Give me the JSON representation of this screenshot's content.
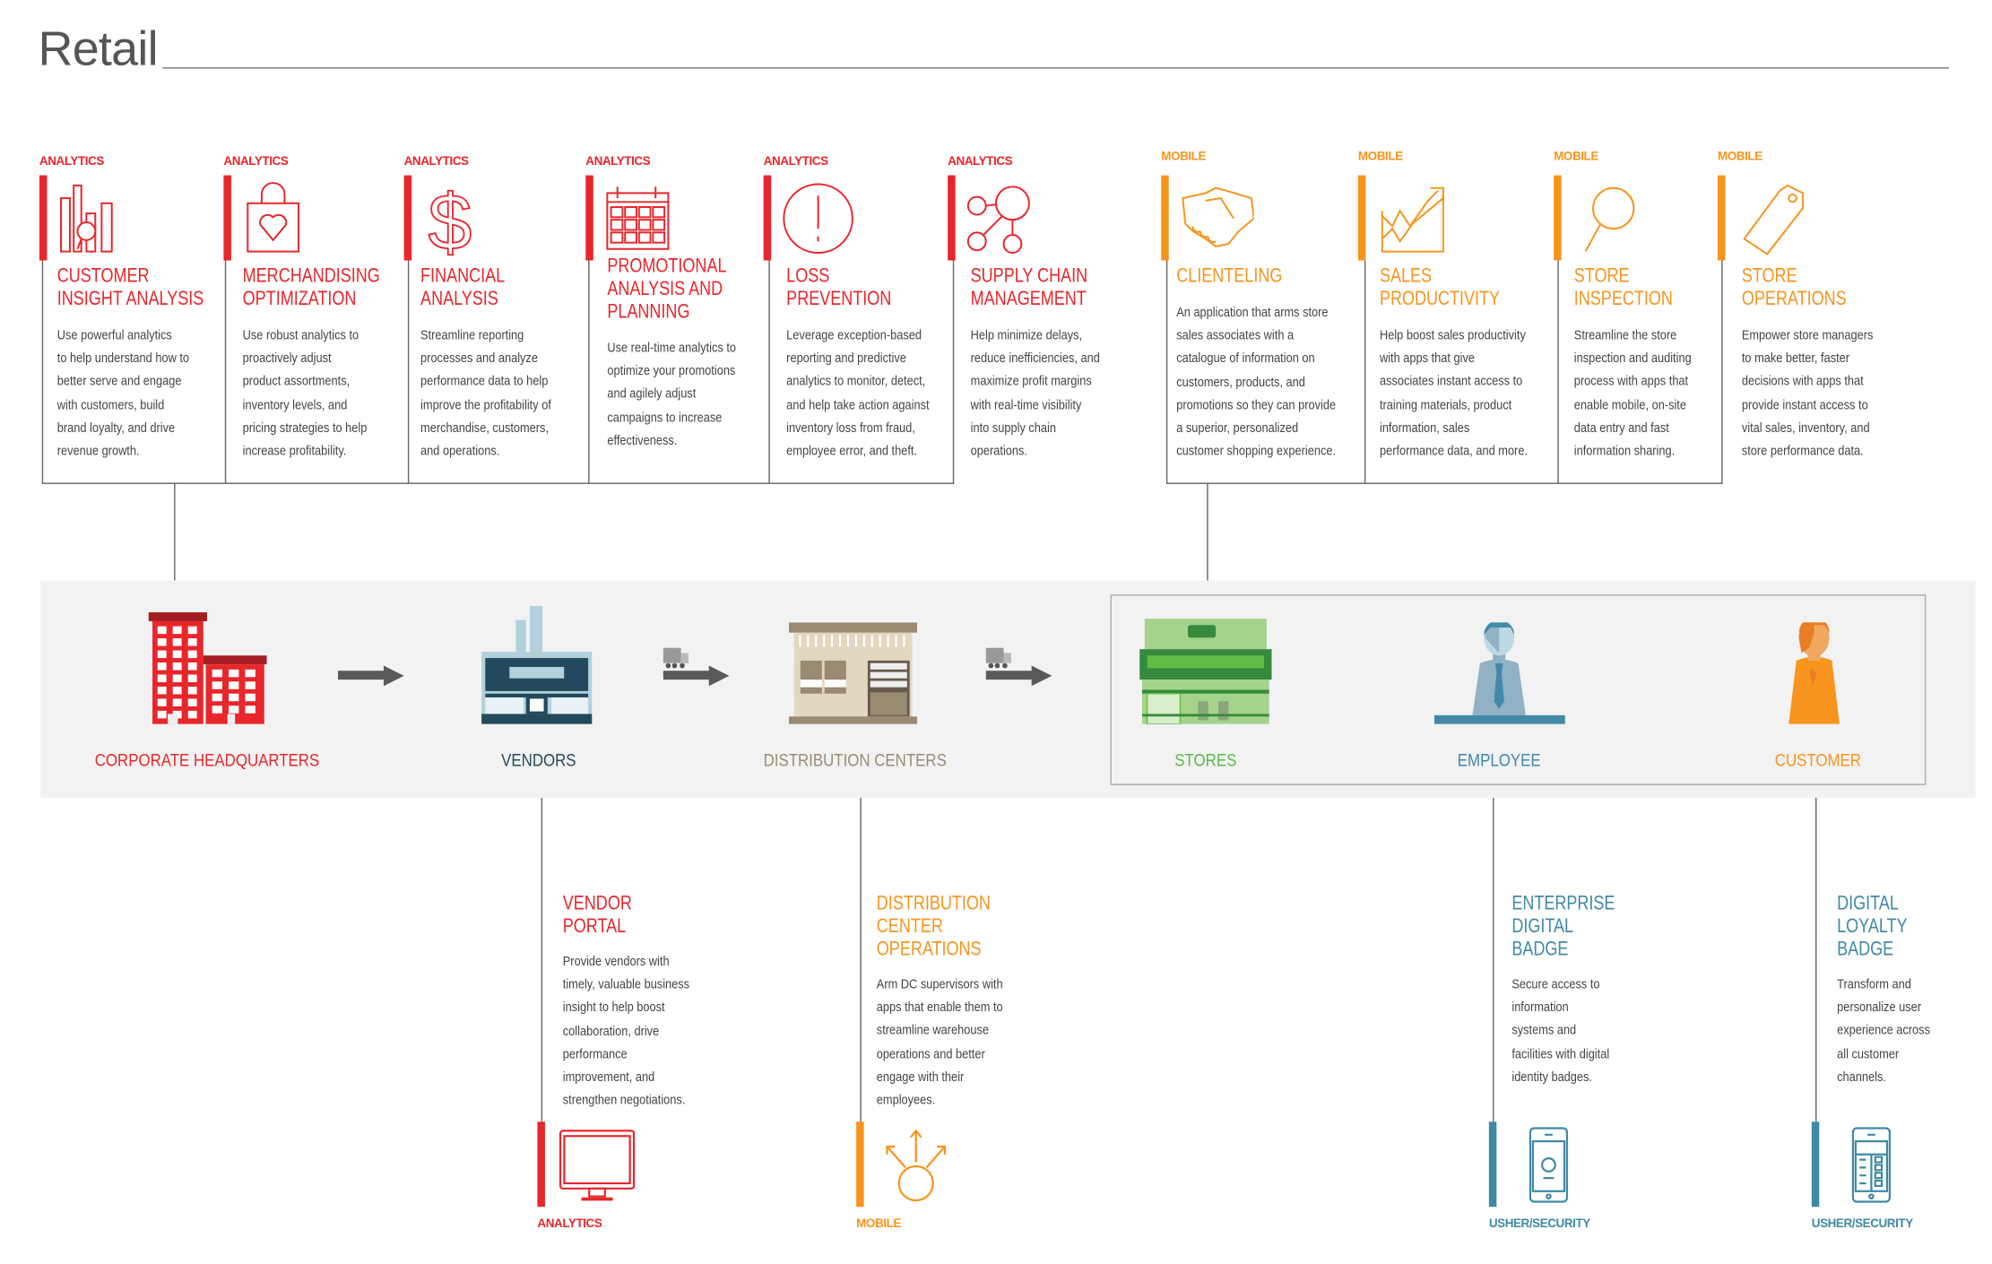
{
  "title": "Retail",
  "colors": {
    "analytics": "#e8262b",
    "mobile": "#f7941d",
    "usher": "#3f89a6",
    "vendors": "#234a5c",
    "distribution": "#9b8b74",
    "stores": "#5cb947",
    "employee": "#3f89a6",
    "customer": "#f7941d",
    "text": "#444444",
    "band": "#f2f2f2"
  },
  "top_cards": [
    {
      "tag": "ANALYTICS",
      "kind": "analytics",
      "icon": "bar-chart-magnifier-icon",
      "title": [
        "CUSTOMER",
        "INSIGHT ANALYSIS"
      ],
      "lines": [
        "Use powerful analytics",
        "to help understand how to",
        "better serve and engage",
        "with customers, build",
        "brand loyalty, and drive",
        "revenue growth."
      ]
    },
    {
      "tag": "ANALYTICS",
      "kind": "analytics",
      "icon": "shopping-bag-heart-icon",
      "title": [
        "MERCHANDISING",
        "OPTIMIZATION"
      ],
      "lines": [
        "Use robust analytics to",
        "proactively adjust",
        "product assortments,",
        "inventory levels, and",
        "pricing strategies to help",
        "increase profitability."
      ]
    },
    {
      "tag": "ANALYTICS",
      "kind": "analytics",
      "icon": "dollar-icon",
      "title": [
        "FINANCIAL",
        "ANALYSIS"
      ],
      "lines": [
        "Streamline reporting",
        "processes and analyze",
        "performance data to help",
        "improve the profitability of",
        "merchandise, customers,",
        "and operations."
      ]
    },
    {
      "tag": "ANALYTICS",
      "kind": "analytics",
      "icon": "calendar-icon",
      "title": [
        "PROMOTIONAL",
        "ANALYSIS AND",
        "PLANNING"
      ],
      "lines": [
        "Use real-time analytics to",
        "optimize your promotions",
        "and agilely adjust",
        "campaigns to increase",
        "effectiveness."
      ]
    },
    {
      "tag": "ANALYTICS",
      "kind": "analytics",
      "icon": "alert-circle-icon",
      "title": [
        "LOSS",
        "PREVENTION"
      ],
      "lines": [
        "Leverage exception-based",
        "reporting and predictive",
        "analytics to monitor, detect,",
        "and help take action against",
        "inventory loss from fraud,",
        "employee error, and theft."
      ]
    },
    {
      "tag": "ANALYTICS",
      "kind": "analytics",
      "icon": "network-nodes-icon",
      "title": [
        "SUPPLY CHAIN",
        "MANAGEMENT"
      ],
      "lines": [
        "Help minimize delays,",
        "reduce inefficiencies, and",
        "maximize profit margins",
        "with real-time visibility",
        "into supply chain",
        "operations."
      ]
    },
    {
      "tag": "MOBILE",
      "kind": "mobile",
      "icon": "handshake-icon",
      "title": [
        "CLIENTELING"
      ],
      "lines": [
        "An application that arms store",
        "sales associates with a",
        "catalogue of information on",
        "customers, products, and",
        "promotions so they can provide",
        "a superior, personalized",
        "customer shopping experience."
      ]
    },
    {
      "tag": "MOBILE",
      "kind": "mobile",
      "icon": "trend-chart-icon",
      "title": [
        "SALES",
        "PRODUCTIVITY"
      ],
      "lines": [
        "Help boost sales productivity",
        "with apps that give",
        "associates instant access to",
        "training materials, product",
        "information, sales",
        "performance data, and more."
      ]
    },
    {
      "tag": "MOBILE",
      "kind": "mobile",
      "icon": "magnifier-icon",
      "title": [
        "STORE",
        "INSPECTION"
      ],
      "lines": [
        "Streamline the store",
        "inspection and auditing",
        "process with apps that",
        "enable mobile, on-site",
        "data entry and fast",
        "information sharing."
      ]
    },
    {
      "tag": "MOBILE",
      "kind": "mobile",
      "icon": "price-tag-icon",
      "title": [
        "STORE",
        "OPERATIONS"
      ],
      "lines": [
        "Empower store managers",
        "to make better, faster",
        "decisions with apps that",
        "provide instant access to",
        "vital sales, inventory, and",
        "store performance data."
      ]
    }
  ],
  "band": [
    {
      "label": "CORPORATE HEADQUARTERS",
      "kind": "analytics",
      "icon": "office-building-icon"
    },
    {
      "label": "VENDORS",
      "kind": "vendors",
      "icon": "factory-icon"
    },
    {
      "label": "DISTRIBUTION CENTERS",
      "kind": "distribution",
      "icon": "warehouse-icon"
    },
    {
      "label": "STORES",
      "kind": "stores",
      "icon": "storefront-icon"
    },
    {
      "label": "EMPLOYEE",
      "kind": "employee",
      "icon": "employee-icon"
    },
    {
      "label": "CUSTOMER",
      "kind": "customer",
      "icon": "customer-icon"
    }
  ],
  "bottom_cards": [
    {
      "tag": "ANALYTICS",
      "kind": "analytics",
      "icon": "monitor-icon",
      "title": [
        "VENDOR",
        "PORTAL"
      ],
      "lines": [
        "Provide vendors with",
        "timely, valuable business",
        "insight to help boost",
        "collaboration, drive",
        "performance",
        "improvement, and",
        "strengthen negotiations."
      ]
    },
    {
      "tag": "MOBILE",
      "kind": "mobile",
      "icon": "arrows-circle-icon",
      "title": [
        "DISTRIBUTION",
        "CENTER",
        "OPERATIONS"
      ],
      "lines": [
        "Arm DC supervisors with",
        "apps that enable them to",
        "streamline warehouse",
        "operations and better",
        "engage with their",
        "employees."
      ]
    },
    {
      "tag": "USHER/SECURITY",
      "kind": "usher",
      "icon": "phone-badge-icon",
      "title": [
        "ENTERPRISE",
        "DIGITAL",
        "BADGE"
      ],
      "lines": [
        "Secure access to",
        "information",
        "systems and",
        "facilities with digital",
        "identity badges."
      ]
    },
    {
      "tag": "USHER/SECURITY",
      "kind": "usher",
      "icon": "phone-loyalty-icon",
      "title": [
        "DIGITAL",
        "LOYALTY",
        "BADGE"
      ],
      "lines": [
        "Transform and",
        "personalize user",
        "experience across",
        "all customer",
        "channels."
      ]
    }
  ]
}
